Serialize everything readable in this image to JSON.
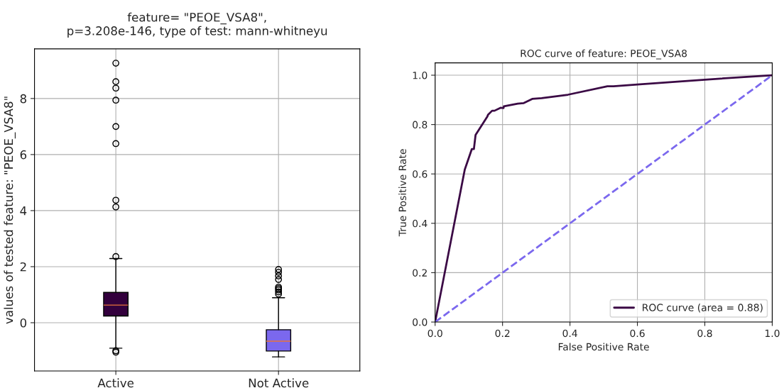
{
  "chart_data": [
    {
      "type": "box",
      "title": "feature= \"PEOE_VSA8\",\np=3.208e-146, type of test: mann-whitneyu",
      "ylabel": "values of tested feature: \"PEOE_VSA8\"",
      "categories": [
        "Active",
        "Not Active"
      ],
      "colors": [
        "#33003d",
        "#7b68ee"
      ],
      "boxes": [
        {
          "low": -0.91,
          "q1": 0.24,
          "median": 0.63,
          "q3": 1.08,
          "high": 2.29,
          "outliers": [
            9.26,
            8.6,
            8.37,
            7.94,
            7.0,
            6.39,
            4.37,
            4.13,
            2.36,
            -1.0,
            -1.05
          ]
        },
        {
          "low": -1.22,
          "q1": -1.01,
          "median": -0.66,
          "q3": -0.25,
          "high": 0.89,
          "outliers": [
            1.9,
            1.8,
            1.67,
            1.54,
            1.27,
            1.22,
            1.17,
            1.1,
            1.02
          ]
        }
      ],
      "ylim": [
        -1.72,
        9.77
      ],
      "yticks": [
        0,
        2,
        4,
        6,
        8
      ],
      "grid": true
    },
    {
      "type": "line",
      "title": "ROC curve of feature: PEOE_VSA8",
      "xlabel": "False Positive Rate",
      "ylabel": "True Positive Rate",
      "series": [
        {
          "name": "ROC curve (area = 0.88)",
          "color": "#3b0a45",
          "line_style": "solid",
          "x": [
            0,
            0.088,
            0.109,
            0.115,
            0.12,
            0.155,
            0.157,
            0.169,
            0.176,
            0.194,
            0.203,
            0.204,
            0.245,
            0.263,
            0.288,
            0.316,
            0.394,
            0.511,
            0.529,
            0.6,
            0.8,
            1.0
          ],
          "values": [
            0,
            0.618,
            0.701,
            0.701,
            0.758,
            0.833,
            0.84,
            0.856,
            0.856,
            0.868,
            0.867,
            0.874,
            0.885,
            0.887,
            0.904,
            0.907,
            0.921,
            0.955,
            0.955,
            0.962,
            0.982,
            1.0
          ]
        },
        {
          "color": "#7b68ee",
          "line_style": "dashed",
          "x": [
            0,
            1
          ],
          "values": [
            0,
            1
          ]
        }
      ],
      "xlim": [
        0,
        1
      ],
      "ylim": [
        0,
        1.05
      ],
      "xticks": [
        {
          "value": 0,
          "label": "0.0"
        },
        0.2,
        0.4,
        0.6,
        0.8,
        {
          "value": 1,
          "label": "1.0"
        }
      ],
      "yticks": [
        {
          "value": 0,
          "label": "0.0"
        },
        0.2,
        0.4,
        0.6,
        0.8,
        {
          "value": 1,
          "label": "1.0"
        }
      ],
      "grid": true,
      "legend": "bottom right"
    }
  ]
}
